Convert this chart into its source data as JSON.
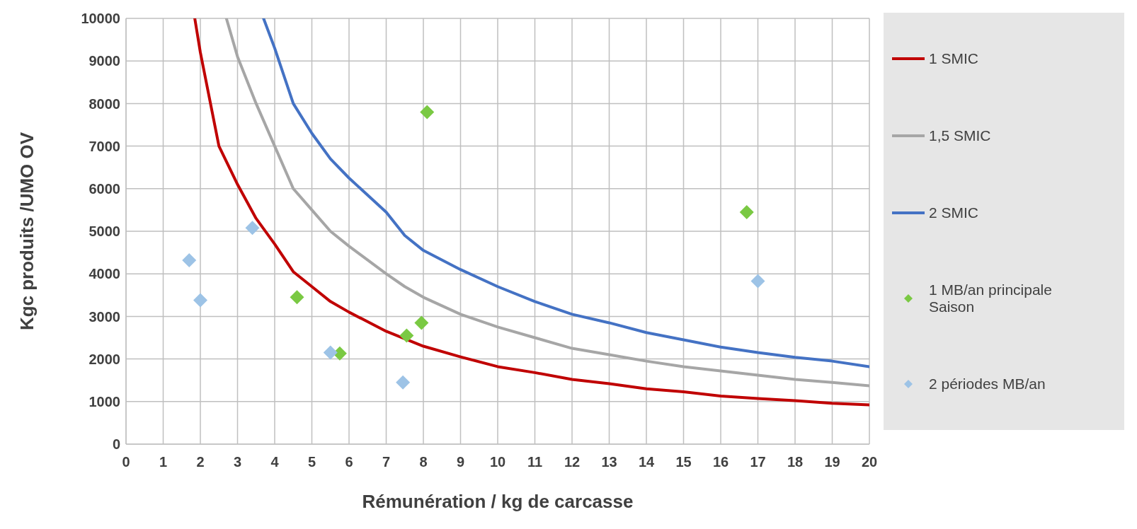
{
  "chart_data": {
    "type": "line",
    "xlabel": "Rémunération / kg de carcasse",
    "ylabel": "Kgc produits /UMO OV",
    "xlim": [
      0,
      20
    ],
    "xticks": [
      0,
      1,
      2,
      3,
      4,
      5,
      6,
      7,
      8,
      9,
      10,
      11,
      12,
      13,
      14,
      15,
      16,
      17,
      18,
      19,
      20
    ],
    "ylim": [
      0,
      10000
    ],
    "yticks": [
      0,
      1000,
      2000,
      3000,
      4000,
      5000,
      6000,
      7000,
      8000,
      9000,
      10000
    ],
    "grid": true,
    "legend": "right",
    "line_style": "solid",
    "series": [
      {
        "name": "1 SMIC",
        "marker": "none",
        "color": "#c00000",
        "x": [
          1.85,
          2,
          2.5,
          3,
          3.5,
          4,
          4.5,
          5,
          5.5,
          6,
          7,
          8,
          9,
          10,
          11,
          12,
          13,
          14,
          15,
          16,
          17,
          18,
          19,
          20
        ],
        "values": [
          10000,
          9200,
          7000,
          6100,
          5300,
          4700,
          4050,
          3700,
          3350,
          3100,
          2650,
          2300,
          2050,
          1820,
          1680,
          1520,
          1420,
          1300,
          1230,
          1130,
          1070,
          1020,
          960,
          920
        ]
      },
      {
        "name": "1,5 SMIC",
        "marker": "none",
        "color": "#a6a6a6",
        "x": [
          2.7,
          3,
          3.5,
          4,
          4.5,
          5,
          5.5,
          6,
          7,
          7.5,
          8,
          9,
          10,
          11,
          12,
          13,
          14,
          15,
          16,
          17,
          18,
          19,
          20
        ],
        "values": [
          10000,
          9100,
          8000,
          7000,
          6000,
          5500,
          5000,
          4650,
          4000,
          3700,
          3450,
          3050,
          2750,
          2500,
          2250,
          2100,
          1950,
          1820,
          1720,
          1620,
          1520,
          1450,
          1370
        ]
      },
      {
        "name": "2 SMIC",
        "marker": "none",
        "color": "#4472c4",
        "x": [
          3.7,
          4,
          4.5,
          5,
          5.5,
          6,
          7,
          7.5,
          8,
          9,
          10,
          11,
          12,
          13,
          14,
          15,
          16,
          17,
          18,
          19,
          20
        ],
        "values": [
          10000,
          9300,
          8000,
          7300,
          6700,
          6250,
          5450,
          4900,
          4550,
          4100,
          3700,
          3350,
          3050,
          2850,
          2620,
          2450,
          2280,
          2150,
          2040,
          1950,
          1820
        ]
      },
      {
        "name": "1 MB/an principale Saison",
        "type": "scatter",
        "marker": "diamond",
        "color": "#7ac943",
        "x": [
          8.1,
          16.7,
          4.6,
          5.75,
          7.55,
          7.95
        ],
        "values": [
          7800,
          5450,
          3450,
          2130,
          2550,
          2850
        ]
      },
      {
        "name": "2 périodes MB/an",
        "type": "scatter",
        "marker": "diamond",
        "color": "#9dc3e6",
        "x": [
          1.7,
          2.0,
          3.4,
          5.5,
          7.45,
          17.0
        ],
        "values": [
          4320,
          3380,
          5080,
          2150,
          1450,
          3830
        ]
      }
    ]
  }
}
